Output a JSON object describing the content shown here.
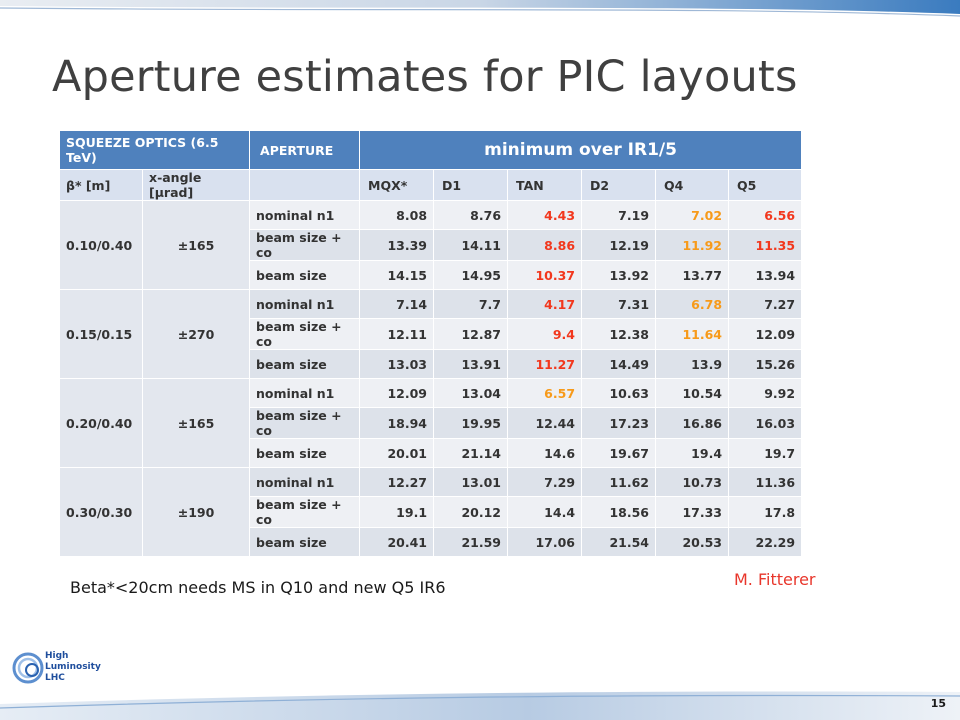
{
  "slide": {
    "title": "Aperture estimates for PIC layouts",
    "note": "Beta*<20cm needs MS in Q10 and new Q5 IR6",
    "author": "M. Fitterer",
    "page_number": "15",
    "logo": {
      "line1": "High",
      "line2": "Luminosity",
      "line3": "LHC"
    }
  },
  "colors": {
    "header_blue": "#4f81bd",
    "red": "#f2371d",
    "orange": "#f79a1a"
  },
  "table": {
    "header_row1": [
      "SQUEEZE OPTICS (6.5 TeV)",
      "APERTURE",
      "minimum over IR1/5"
    ],
    "header_row2": [
      "β* [m]",
      "x-angle [μrad]",
      "",
      "MQX*",
      "D1",
      "TAN",
      "D2",
      "Q4",
      "Q5"
    ],
    "groups": [
      {
        "beta": "0.10/0.40",
        "xangle": "±165",
        "rows": [
          {
            "label": "nominal n1",
            "values": [
              "8.08",
              "8.76",
              "4.43",
              "7.19",
              "7.02",
              "6.56"
            ],
            "colors": [
              "",
              "",
              "red",
              "",
              "orange",
              "red"
            ]
          },
          {
            "label": "beam size + co",
            "values": [
              "13.39",
              "14.11",
              "8.86",
              "12.19",
              "11.92",
              "11.35"
            ],
            "colors": [
              "",
              "",
              "red",
              "",
              "orange",
              "red"
            ]
          },
          {
            "label": "beam size",
            "values": [
              "14.15",
              "14.95",
              "10.37",
              "13.92",
              "13.77",
              "13.94"
            ],
            "colors": [
              "",
              "",
              "red",
              "",
              "",
              ""
            ]
          }
        ]
      },
      {
        "beta": "0.15/0.15",
        "xangle": "±270",
        "rows": [
          {
            "label": "nominal n1",
            "values": [
              "7.14",
              "7.7",
              "4.17",
              "7.31",
              "6.78",
              "7.27"
            ],
            "colors": [
              "",
              "",
              "red",
              "",
              "orange",
              ""
            ]
          },
          {
            "label": "beam size + co",
            "values": [
              "12.11",
              "12.87",
              "9.4",
              "12.38",
              "11.64",
              "12.09"
            ],
            "colors": [
              "",
              "",
              "red",
              "",
              "orange",
              ""
            ]
          },
          {
            "label": "beam size",
            "values": [
              "13.03",
              "13.91",
              "11.27",
              "14.49",
              "13.9",
              "15.26"
            ],
            "colors": [
              "",
              "",
              "red",
              "",
              "",
              ""
            ]
          }
        ]
      },
      {
        "beta": "0.20/0.40",
        "xangle": "±165",
        "rows": [
          {
            "label": "nominal n1",
            "values": [
              "12.09",
              "13.04",
              "6.57",
              "10.63",
              "10.54",
              "9.92"
            ],
            "colors": [
              "",
              "",
              "orange",
              "",
              "",
              ""
            ]
          },
          {
            "label": "beam size + co",
            "values": [
              "18.94",
              "19.95",
              "12.44",
              "17.23",
              "16.86",
              "16.03"
            ],
            "colors": [
              "",
              "",
              "",
              "",
              "",
              ""
            ]
          },
          {
            "label": "beam size",
            "values": [
              "20.01",
              "21.14",
              "14.6",
              "19.67",
              "19.4",
              "19.7"
            ],
            "colors": [
              "",
              "",
              "",
              "",
              "",
              ""
            ]
          }
        ]
      },
      {
        "beta": "0.30/0.30",
        "xangle": "±190",
        "rows": [
          {
            "label": "nominal n1",
            "values": [
              "12.27",
              "13.01",
              "7.29",
              "11.62",
              "10.73",
              "11.36"
            ],
            "colors": [
              "",
              "",
              "",
              "",
              "",
              ""
            ]
          },
          {
            "label": "beam size + co",
            "values": [
              "19.1",
              "20.12",
              "14.4",
              "18.56",
              "17.33",
              "17.8"
            ],
            "colors": [
              "",
              "",
              "",
              "",
              "",
              ""
            ]
          },
          {
            "label": "beam size",
            "values": [
              "20.41",
              "21.59",
              "17.06",
              "21.54",
              "20.53",
              "22.29"
            ],
            "colors": [
              "",
              "",
              "",
              "",
              "",
              ""
            ]
          }
        ]
      }
    ]
  }
}
